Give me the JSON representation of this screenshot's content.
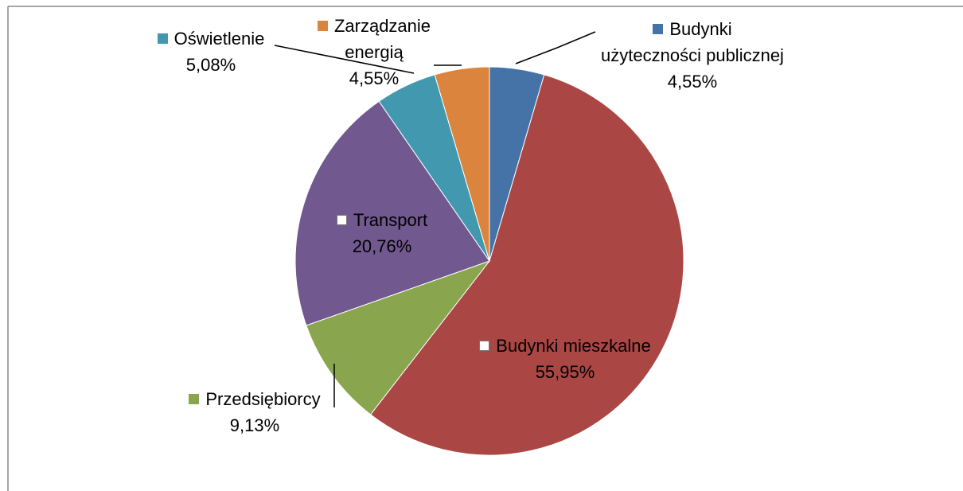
{
  "chart_data": {
    "type": "pie",
    "categories": [
      "Budynki użyteczności publicznej",
      "Budynki mieszkalne",
      "Przedsiębiorcy",
      "Transport",
      "Oświetlenie",
      "Zarządzanie energią"
    ],
    "values": [
      4.55,
      55.95,
      9.13,
      20.76,
      5.08,
      4.55
    ],
    "value_labels": [
      "4,55%",
      "55,95%",
      "9,13%",
      "20,76%",
      "5,08%",
      "4,55%"
    ],
    "colors": [
      "#4572a7",
      "#aa4643",
      "#89a54e",
      "#71588f",
      "#4198af",
      "#db843d"
    ]
  }
}
